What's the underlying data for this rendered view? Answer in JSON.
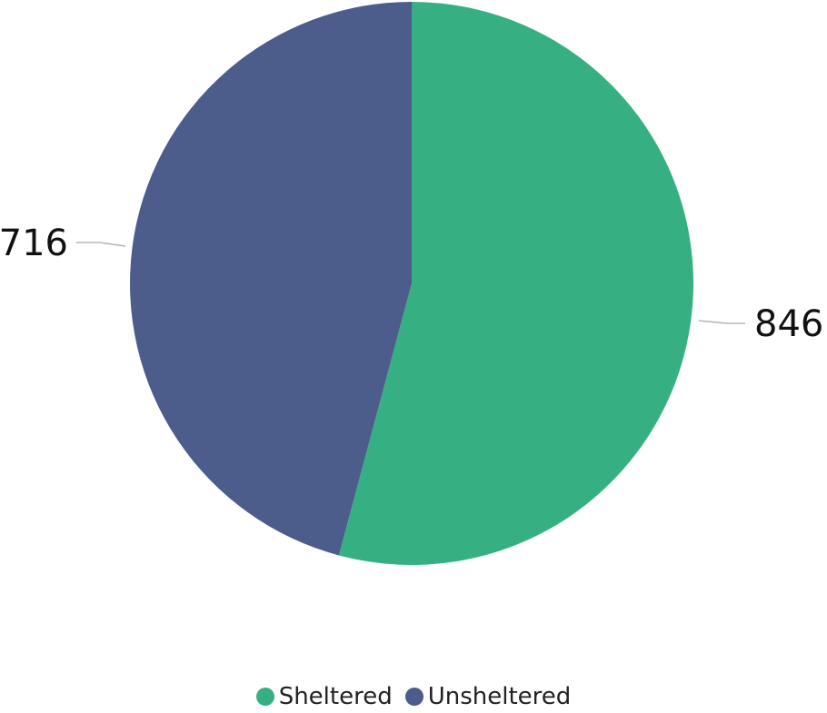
{
  "chart_data": {
    "type": "pie",
    "categories": [
      "Sheltered",
      "Unsheltered"
    ],
    "values": [
      846,
      716
    ],
    "colors": [
      "#36B083",
      "#4C5C8B"
    ],
    "data_labels": [
      "846",
      "716"
    ],
    "legend": {
      "placement": "bottom-center",
      "entries": [
        "Sheltered",
        "Unsheltered"
      ]
    },
    "start_angle_deg": 0,
    "direction": "clockwise"
  }
}
